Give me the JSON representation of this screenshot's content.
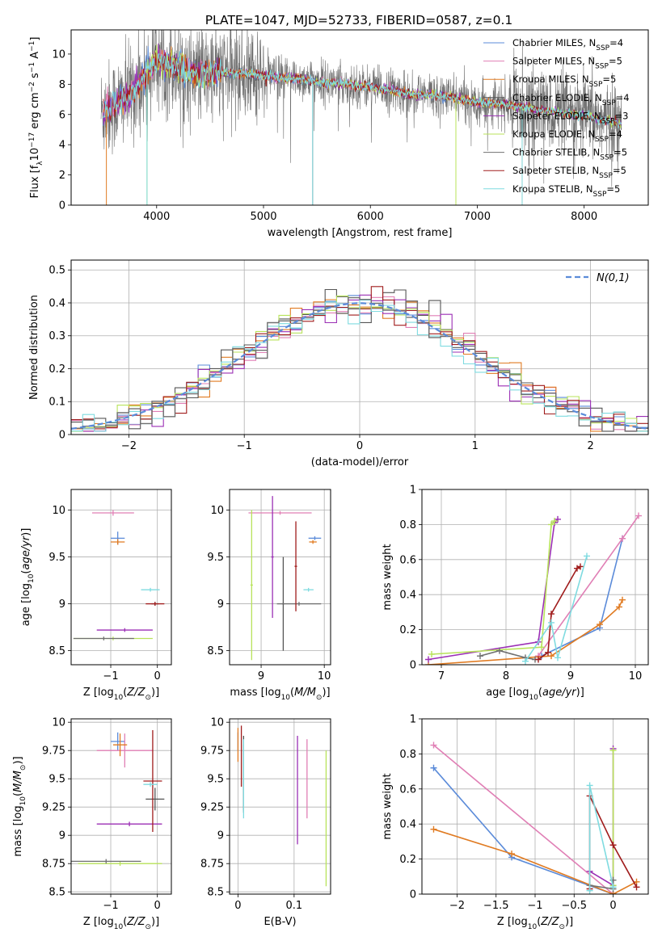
{
  "figure": {
    "title": "PLATE=1047, MJD=52733, FIBERID=0587, z=0.1"
  },
  "colors": {
    "series": [
      "#5b8bd9",
      "#e07fb5",
      "#e07b22",
      "#555555",
      "#9b2fb5",
      "#b8e35a",
      "#707070",
      "#a01c1c",
      "#7fdbe0"
    ]
  },
  "chart_data": [
    {
      "id": "spectrum",
      "type": "line",
      "title": "PLATE=1047, MJD=52733, FIBERID=0587, z=0.1",
      "xlabel": "wavelength [Angstrom, rest frame]",
      "ylabel": "Flux [f",
      "xlim": [
        3200,
        8600
      ],
      "ylim": [
        0,
        11.6
      ],
      "xticks": [
        4000,
        5000,
        6000,
        7000,
        8000
      ],
      "yticks": [
        0,
        2,
        4,
        6,
        8,
        10
      ],
      "legend": "upper right",
      "series": [
        {
          "name": "Chabrier MILES",
          "nssp": "4"
        },
        {
          "name": "Salpeter MILES",
          "nssp": "5"
        },
        {
          "name": "Kroupa MILES",
          "nssp": "5"
        },
        {
          "name": "Chabrier ELODIE",
          "nssp": "4"
        },
        {
          "name": "Salpeter ELODIE",
          "nssp": "3"
        },
        {
          "name": "Kroupa ELODIE",
          "nssp": "4"
        },
        {
          "name": "Chabrier STELIB",
          "nssp": "5"
        },
        {
          "name": "Salpeter STELIB",
          "nssp": "5"
        },
        {
          "name": "Kroupa STELIB",
          "nssp": "5"
        }
      ],
      "continuum": {
        "x": [
          3500,
          3700,
          3900,
          4000,
          4200,
          4400,
          4600,
          4800,
          5000,
          5200,
          5400,
          5600,
          5800,
          6000,
          6200,
          6400,
          6600,
          6800,
          7000,
          7200,
          7400,
          7600,
          7800,
          8000,
          8200,
          8350
        ],
        "y": [
          6.2,
          7.0,
          8.6,
          9.6,
          9.1,
          8.6,
          8.8,
          8.7,
          8.6,
          8.4,
          8.3,
          8.1,
          8.0,
          7.8,
          7.6,
          7.3,
          7.3,
          7.1,
          6.8,
          6.7,
          6.5,
          6.3,
          6.1,
          5.9,
          5.6,
          5.4
        ]
      }
    },
    {
      "id": "residuals",
      "type": "histogram",
      "xlabel": "(data-model)/error",
      "ylabel": "Normed distribution",
      "xlim": [
        -2.5,
        2.5
      ],
      "ylim": [
        0,
        0.53
      ],
      "xticks": [
        -2,
        -1,
        0,
        1,
        2
      ],
      "yticks": [
        0.0,
        0.1,
        0.2,
        0.3,
        0.4,
        0.5
      ],
      "legend": "upper right",
      "reference_label": "N(0,1)",
      "bin_width": 0.1
    },
    {
      "id": "age_vs_Z",
      "type": "scatter",
      "xlabel": "Z [log",
      "ylabel": "age  [log",
      "xlim": [
        -1.85,
        0.3
      ],
      "ylim": [
        8.35,
        10.22
      ],
      "xticks": [
        -1,
        0
      ],
      "yticks": [
        8.5,
        9.0,
        9.5,
        10.0
      ],
      "points": [
        {
          "series": 0,
          "x": -0.85,
          "y": 9.7,
          "xerr": 0.15,
          "yerr": 0.07
        },
        {
          "series": 1,
          "x": -0.95,
          "y": 9.97,
          "xerr": 0.45,
          "yerr": 0.03
        },
        {
          "series": 2,
          "x": -0.85,
          "y": 9.66,
          "xerr": 0.15,
          "yerr": 0.03
        },
        {
          "series": 3,
          "x": -0.05,
          "y": 9.0,
          "xerr": 0.08,
          "yerr": 0.02
        },
        {
          "series": 4,
          "x": -0.7,
          "y": 8.72,
          "xerr": 0.6,
          "yerr": 0.02
        },
        {
          "series": 5,
          "x": -0.95,
          "y": 8.63,
          "xerr": 0.85,
          "yerr": 0.02
        },
        {
          "series": 6,
          "x": -1.15,
          "y": 8.63,
          "xerr": 0.65,
          "yerr": 0.02
        },
        {
          "series": 7,
          "x": -0.05,
          "y": 9.0,
          "xerr": 0.2,
          "yerr": 0.02
        },
        {
          "series": 8,
          "x": -0.15,
          "y": 9.15,
          "xerr": 0.2,
          "yerr": 0.02
        }
      ]
    },
    {
      "id": "age_vs_mass",
      "type": "scatter",
      "xlabel": "mass [log",
      "ylabel": "",
      "xlim": [
        8.5,
        10.1
      ],
      "ylim": [
        8.35,
        10.22
      ],
      "xticks": [
        9,
        10
      ],
      "yticks": [
        8.5,
        9.0,
        9.5,
        10.0
      ],
      "points": [
        {
          "series": 0,
          "x": 9.85,
          "y": 9.7,
          "xerr": 0.1,
          "yerr": 0.02
        },
        {
          "series": 1,
          "x": 9.3,
          "y": 9.97,
          "xerr": 0.5,
          "yerr": 0.02
        },
        {
          "series": 2,
          "x": 9.82,
          "y": 9.66,
          "xerr": 0.06,
          "yerr": 0.02
        },
        {
          "series": 3,
          "x": 9.35,
          "y": 9.0,
          "xerr": 0.02,
          "yerr": 0.5
        },
        {
          "series": 4,
          "x": 9.18,
          "y": 9.5,
          "xerr": 0.02,
          "yerr": 0.65
        },
        {
          "series": 5,
          "x": 8.85,
          "y": 9.2,
          "xerr": 0.02,
          "yerr": 0.8
        },
        {
          "series": 6,
          "x": 9.6,
          "y": 9.0,
          "xerr": 0.35,
          "yerr": 0.02
        },
        {
          "series": 7,
          "x": 9.55,
          "y": 9.4,
          "xerr": 0.02,
          "yerr": 0.48
        },
        {
          "series": 8,
          "x": 9.75,
          "y": 9.15,
          "xerr": 0.08,
          "yerr": 0.02
        }
      ]
    },
    {
      "id": "weight_vs_age",
      "type": "line",
      "xlabel": "age  [log",
      "ylabel": "mass weight",
      "xlim": [
        6.7,
        10.2
      ],
      "ylim": [
        0,
        1
      ],
      "xticks": [
        7,
        8,
        9,
        10
      ],
      "yticks": [
        0.0,
        0.2,
        0.4,
        0.6,
        0.8,
        1.0
      ],
      "series": [
        {
          "series": 0,
          "x": [
            8.55,
            9.45,
            9.8
          ],
          "y": [
            0.05,
            0.21,
            0.72
          ]
        },
        {
          "series": 1,
          "x": [
            8.5,
            9.8,
            10.05
          ],
          "y": [
            0.05,
            0.72,
            0.85
          ]
        },
        {
          "series": 2,
          "x": [
            6.8,
            8.7,
            9.45,
            9.75,
            9.8
          ],
          "y": [
            0.0,
            0.05,
            0.23,
            0.33,
            0.37
          ]
        },
        {
          "series": 4,
          "x": [
            6.8,
            8.5,
            8.75,
            8.8
          ],
          "y": [
            0.03,
            0.13,
            0.81,
            0.83
          ]
        },
        {
          "series": 5,
          "x": [
            6.85,
            8.55,
            8.7,
            8.75
          ],
          "y": [
            0.06,
            0.1,
            0.8,
            0.82
          ]
        },
        {
          "series": 6,
          "x": [
            7.6,
            7.9,
            8.3,
            8.45
          ],
          "y": [
            0.05,
            0.08,
            0.04,
            0.03
          ]
        },
        {
          "series": 7,
          "x": [
            8.5,
            8.65,
            8.7,
            9.1,
            9.15
          ],
          "y": [
            0.03,
            0.07,
            0.29,
            0.55,
            0.56
          ]
        },
        {
          "series": 8,
          "x": [
            8.3,
            8.7,
            8.8,
            9.25
          ],
          "y": [
            0.02,
            0.24,
            0.04,
            0.62
          ]
        }
      ]
    },
    {
      "id": "mass_vs_Z",
      "type": "scatter",
      "xlabel": "Z [log",
      "ylabel": "mass [log",
      "xlim": [
        -1.85,
        0.3
      ],
      "ylim": [
        8.48,
        10.03
      ],
      "xticks": [
        -1,
        0
      ],
      "yticks": [
        8.5,
        8.75,
        9.0,
        9.25,
        9.5,
        9.75,
        10.0
      ],
      "points": [
        {
          "series": 0,
          "x": -0.85,
          "y": 9.83,
          "xerr": 0.15,
          "yerr": 0.08
        },
        {
          "series": 1,
          "x": -0.7,
          "y": 9.75,
          "xerr": 0.6,
          "yerr": 0.15
        },
        {
          "series": 2,
          "x": -0.8,
          "y": 9.8,
          "xerr": 0.15,
          "yerr": 0.1
        },
        {
          "series": 3,
          "x": -0.05,
          "y": 9.32,
          "xerr": 0.2,
          "yerr": 0.1
        },
        {
          "series": 4,
          "x": -0.6,
          "y": 9.1,
          "xerr": 0.7,
          "yerr": 0.02
        },
        {
          "series": 5,
          "x": -0.8,
          "y": 8.75,
          "xerr": 0.9,
          "yerr": 0.02
        },
        {
          "series": 6,
          "x": -1.1,
          "y": 8.77,
          "xerr": 0.75,
          "yerr": 0.02
        },
        {
          "series": 7,
          "x": -0.1,
          "y": 9.48,
          "xerr": 0.2,
          "yerr": 0.45
        },
        {
          "series": 8,
          "x": -0.15,
          "y": 9.45,
          "xerr": 0.15,
          "yerr": 0.02
        }
      ]
    },
    {
      "id": "mass_vs_EBV",
      "type": "scatter",
      "xlabel": "E(B-V)",
      "ylabel": "",
      "xlim": [
        -0.015,
        0.165
      ],
      "ylim": [
        8.48,
        10.03
      ],
      "xticks": [
        0.0,
        0.1
      ],
      "yticks": [
        8.5,
        8.75,
        9.0,
        9.25,
        9.5,
        9.75,
        10.0
      ],
      "points": [
        {
          "series": 0,
          "x": 0.0,
          "y": 9.83,
          "yerr": 0.08
        },
        {
          "series": 1,
          "x": 0.123,
          "y": 9.5,
          "yerr": 0.35
        },
        {
          "series": 2,
          "x": 0.0,
          "y": 9.8,
          "yerr": 0.15
        },
        {
          "series": 3,
          "x": 0.01,
          "y": 9.55,
          "yerr": 0.33
        },
        {
          "series": 4,
          "x": 0.106,
          "y": 9.4,
          "yerr": 0.48
        },
        {
          "series": 5,
          "x": 0.157,
          "y": 9.15,
          "yerr": 0.6
        },
        {
          "series": 6,
          "x": 0.01,
          "y": 9.5,
          "yerr": 0.3
        },
        {
          "series": 7,
          "x": 0.006,
          "y": 9.7,
          "yerr": 0.27
        },
        {
          "series": 8,
          "x": 0.01,
          "y": 9.5,
          "yerr": 0.35
        }
      ]
    },
    {
      "id": "weight_vs_Z",
      "type": "line",
      "xlabel": "Z [log",
      "ylabel": "mass weight",
      "xlim": [
        -2.45,
        0.45
      ],
      "ylim": [
        0,
        1
      ],
      "xticks": [
        -2.0,
        -1.5,
        -1.0,
        -0.5,
        0.0
      ],
      "yticks": [
        0.0,
        0.2,
        0.4,
        0.6,
        0.8,
        1.0
      ],
      "series": [
        {
          "series": 0,
          "x": [
            -2.3,
            -1.3,
            0.0
          ],
          "y": [
            0.72,
            0.21,
            0.0
          ]
        },
        {
          "series": 1,
          "x": [
            -2.3,
            0.0
          ],
          "y": [
            0.85,
            0.0
          ]
        },
        {
          "series": 2,
          "x": [
            -2.3,
            -1.3,
            0.0,
            0.3
          ],
          "y": [
            0.37,
            0.23,
            0.0,
            0.07
          ]
        },
        {
          "series": 4,
          "x": [
            -0.3,
            0.0,
            0.0
          ],
          "y": [
            0.13,
            0.05,
            0.83
          ]
        },
        {
          "series": 5,
          "x": [
            0.0,
            0.0
          ],
          "y": [
            0.05,
            0.82
          ]
        },
        {
          "series": 6,
          "x": [
            -0.3,
            0.0,
            0.0
          ],
          "y": [
            0.05,
            0.03,
            0.08
          ]
        },
        {
          "series": 7,
          "x": [
            -0.3,
            -0.3,
            0.0,
            0.3
          ],
          "y": [
            0.03,
            0.56,
            0.28,
            0.04
          ]
        },
        {
          "series": 8,
          "x": [
            -0.3,
            -0.3,
            0.0
          ],
          "y": [
            0.02,
            0.62,
            0.04
          ]
        }
      ]
    }
  ]
}
